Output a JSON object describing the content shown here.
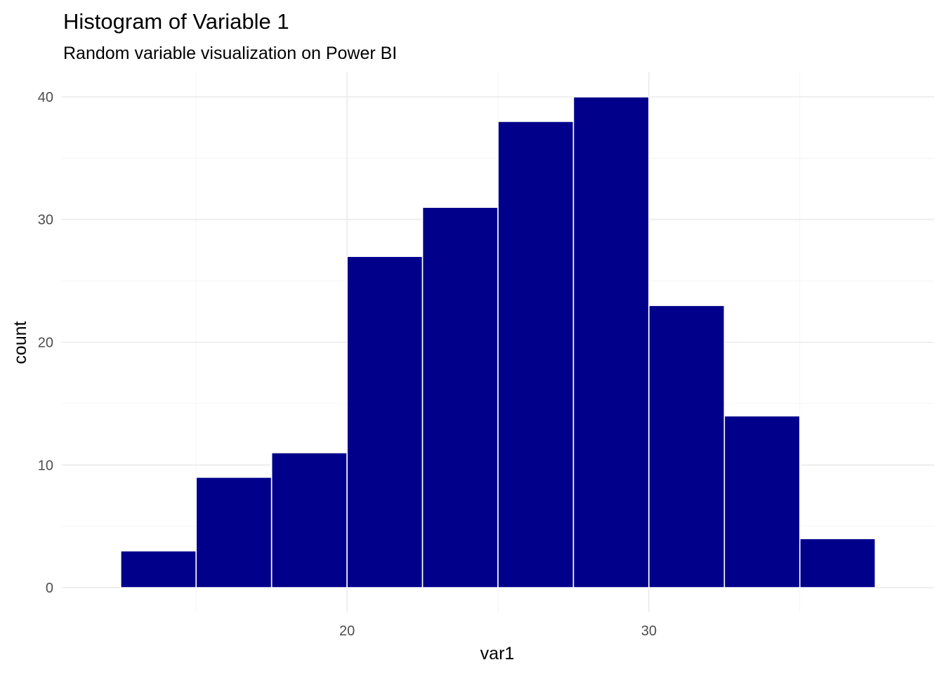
{
  "chart_data": {
    "type": "bar",
    "title": "Histogram of Variable 1",
    "subtitle": "Random variable visualization on Power BI",
    "xlabel": "var1",
    "ylabel": "count",
    "bin_width": 2.5,
    "bins": [
      {
        "x0": 12.5,
        "x1": 15.0,
        "count": 3
      },
      {
        "x0": 15.0,
        "x1": 17.5,
        "count": 9
      },
      {
        "x0": 17.5,
        "x1": 20.0,
        "count": 11
      },
      {
        "x0": 20.0,
        "x1": 22.5,
        "count": 27
      },
      {
        "x0": 22.5,
        "x1": 25.0,
        "count": 31
      },
      {
        "x0": 25.0,
        "x1": 27.5,
        "count": 38
      },
      {
        "x0": 27.5,
        "x1": 30.0,
        "count": 40
      },
      {
        "x0": 30.0,
        "x1": 32.5,
        "count": 23
      },
      {
        "x0": 32.5,
        "x1": 35.0,
        "count": 14
      },
      {
        "x0": 35.0,
        "x1": 37.5,
        "count": 4
      }
    ],
    "xlim": [
      10.55,
      39.45
    ],
    "ylim": [
      -2,
      42
    ],
    "x_ticks": [
      {
        "value": 20,
        "label": "20"
      },
      {
        "value": 30,
        "label": "30"
      }
    ],
    "x_minor_ticks": [
      15,
      25,
      35
    ],
    "y_ticks": [
      {
        "value": 0,
        "label": "0"
      },
      {
        "value": 10,
        "label": "10"
      },
      {
        "value": 20,
        "label": "20"
      },
      {
        "value": 30,
        "label": "30"
      },
      {
        "value": 40,
        "label": "40"
      }
    ],
    "y_minor_ticks": [
      5,
      15,
      25,
      35
    ],
    "grid": true,
    "legend": "none",
    "colors": {
      "bar_fill": "#00008b",
      "bar_border": "#ffffff",
      "background": "#ffffff"
    }
  }
}
